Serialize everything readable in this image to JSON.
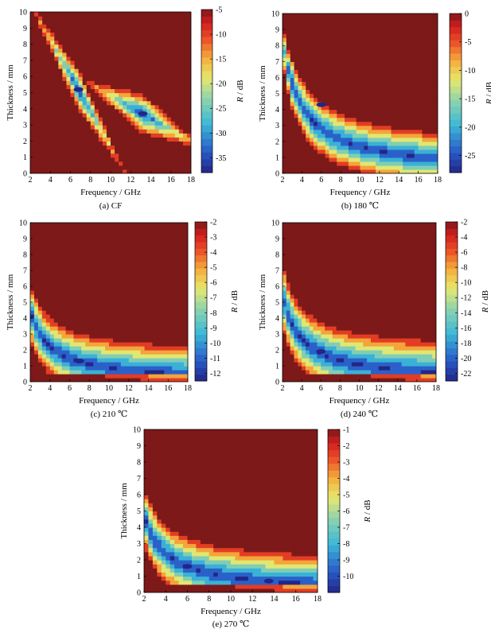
{
  "figure": {
    "x_axis_label": "Frequency / GHz",
    "y_axis_label": "Thickness / mm",
    "colorbar_label_italic": "R",
    "colorbar_label_rest": " / dB"
  },
  "chart_data": [
    {
      "type": "heatmap",
      "caption": "(a) CF",
      "xlabel": "Frequency / GHz",
      "ylabel": "Thickness / mm",
      "xlim": [
        2,
        18
      ],
      "ylim": [
        0,
        10
      ],
      "xticks": [
        2,
        4,
        6,
        8,
        10,
        12,
        14,
        16,
        18
      ],
      "yticks": [
        0,
        1,
        2,
        3,
        4,
        5,
        6,
        7,
        8,
        9,
        10
      ],
      "colorbar": {
        "label": "R / dB",
        "range": [
          -38,
          -5
        ],
        "ticks": [
          -5,
          -10,
          -15,
          -20,
          -25,
          -30,
          -35
        ]
      },
      "minima": [
        {
          "frequency": 6.8,
          "thickness": 5.2,
          "r": -38
        },
        {
          "frequency": 13.2,
          "thickness": 3.7,
          "r": -33
        }
      ]
    },
    {
      "type": "heatmap",
      "caption": "(b) 180 ℃",
      "xlabel": "Frequency / GHz",
      "ylabel": "Thickness / mm",
      "xlim": [
        2,
        18
      ],
      "ylim": [
        0,
        10
      ],
      "xticks": [
        2,
        4,
        6,
        8,
        10,
        12,
        14,
        16,
        18
      ],
      "yticks": [
        0,
        1,
        2,
        3,
        4,
        5,
        6,
        7,
        8,
        9,
        10
      ],
      "colorbar": {
        "label": "R / dB",
        "range": [
          -28,
          0
        ],
        "ticks": [
          0,
          -5,
          -10,
          -15,
          -20,
          -25
        ]
      },
      "minima": [
        {
          "frequency": 6.0,
          "thickness": 4.3,
          "r": -28
        }
      ]
    },
    {
      "type": "heatmap",
      "caption": "(c) 210 ℃",
      "xlabel": "Frequency / GHz",
      "ylabel": "Thickness / mm",
      "xlim": [
        2,
        18
      ],
      "ylim": [
        0,
        10
      ],
      "xticks": [
        2,
        4,
        6,
        8,
        10,
        12,
        14,
        16,
        18
      ],
      "yticks": [
        0,
        1,
        2,
        3,
        4,
        5,
        6,
        7,
        8,
        9,
        10
      ],
      "colorbar": {
        "label": "R / dB",
        "range": [
          -12.5,
          -2
        ],
        "ticks": [
          -2,
          -3,
          -4,
          -5,
          -6,
          -7,
          -8,
          -9,
          -10,
          -11,
          -12
        ]
      },
      "minima": [
        {
          "frequency": 7.0,
          "thickness": 1.3,
          "r": -12.5
        }
      ]
    },
    {
      "type": "heatmap",
      "caption": "(d) 240 ℃",
      "xlabel": "Frequency / GHz",
      "ylabel": "Thickness / mm",
      "xlim": [
        2,
        18
      ],
      "ylim": [
        0,
        10
      ],
      "xticks": [
        2,
        4,
        6,
        8,
        10,
        12,
        14,
        16,
        18
      ],
      "yticks": [
        0,
        1,
        2,
        3,
        4,
        5,
        6,
        7,
        8,
        9,
        10
      ],
      "colorbar": {
        "label": "R / dB",
        "range": [
          -23,
          -2
        ],
        "ticks": [
          -2,
          -4,
          -6,
          -8,
          -10,
          -12,
          -14,
          -16,
          -18,
          -20,
          -22
        ]
      },
      "minima": [
        {
          "frequency": 6.0,
          "thickness": 1.9,
          "r": -23
        }
      ]
    },
    {
      "type": "heatmap",
      "caption": "(e) 270 ℃",
      "xlabel": "Frequency / GHz",
      "ylabel": "Thickness / mm",
      "xlim": [
        2,
        18
      ],
      "ylim": [
        0,
        10
      ],
      "xticks": [
        2,
        4,
        6,
        8,
        10,
        12,
        14,
        16,
        18
      ],
      "yticks": [
        0,
        1,
        2,
        3,
        4,
        5,
        6,
        7,
        8,
        9,
        10
      ],
      "colorbar": {
        "label": "R / dB",
        "range": [
          -11,
          -1
        ],
        "ticks": [
          -1,
          -2,
          -3,
          -4,
          -5,
          -6,
          -7,
          -8,
          -9,
          -10
        ]
      },
      "minima": [
        {
          "frequency": 6.0,
          "thickness": 1.6,
          "r": -11
        },
        {
          "frequency": 13.5,
          "thickness": 0.7,
          "r": -10.5
        }
      ]
    }
  ]
}
